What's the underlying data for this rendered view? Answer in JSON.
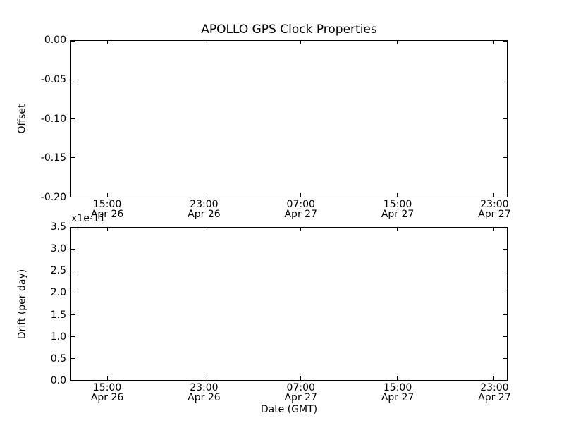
{
  "figure": {
    "background_color": "#ffffff",
    "frame_color": "#000000",
    "text_color": "#000000"
  },
  "chart_data": [
    {
      "type": "line",
      "title": "APOLLO GPS Clock Properties",
      "ylabel": "Offset",
      "xlabel": "",
      "ylim": [
        -0.2,
        0.0
      ],
      "yticks": [
        "0.00",
        "-0.05",
        "-0.10",
        "-0.15",
        "-0.20"
      ],
      "xticks": [
        {
          "time": "15:00",
          "date": "Apr 26"
        },
        {
          "time": "23:00",
          "date": "Apr 26"
        },
        {
          "time": "07:00",
          "date": "Apr 27"
        },
        {
          "time": "15:00",
          "date": "Apr 27"
        },
        {
          "time": "23:00",
          "date": "Apr 27"
        }
      ],
      "x_positions": [
        0.084,
        0.3055,
        0.527,
        0.7485,
        0.97
      ],
      "grid": false,
      "legend": null,
      "series": []
    },
    {
      "type": "line",
      "title": "",
      "ylabel": "Drift (per day)",
      "offset_text": "x1e-11",
      "xlabel": "Date (GMT)",
      "ylim": [
        0.0,
        3.5
      ],
      "yticks": [
        "3.5",
        "3.0",
        "2.5",
        "2.0",
        "1.5",
        "1.0",
        "0.5",
        "0.0"
      ],
      "xticks": [
        {
          "time": "15:00",
          "date": "Apr 26"
        },
        {
          "time": "23:00",
          "date": "Apr 26"
        },
        {
          "time": "07:00",
          "date": "Apr 27"
        },
        {
          "time": "15:00",
          "date": "Apr 27"
        },
        {
          "time": "23:00",
          "date": "Apr 27"
        }
      ],
      "x_positions": [
        0.084,
        0.3055,
        0.527,
        0.7485,
        0.97
      ],
      "grid": false,
      "legend": null,
      "series": []
    }
  ]
}
